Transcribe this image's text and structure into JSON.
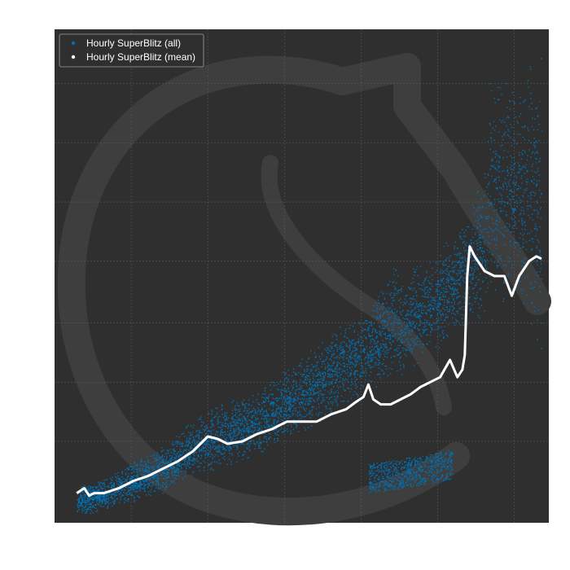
{
  "chart_data": {
    "type": "scatter",
    "title": "",
    "xlabel": "",
    "ylabel": "",
    "grid": true,
    "legend_position": "top-left",
    "x_tick_labels": [],
    "y_tick_labels": [],
    "xlim": [
      0,
      100
    ],
    "ylim": [
      0,
      100
    ],
    "background_color": "#2f2f2f",
    "grid_color": "#5a5a5a",
    "watermark": "knight-logo",
    "series": [
      {
        "name": "Hourly SuperBlitz (all)",
        "color": "#0070b4",
        "kind": "scatter-cloud",
        "bands": [
          [
            4.5,
            1.5,
            8
          ],
          [
            8,
            2,
            8
          ],
          [
            15,
            4,
            12
          ],
          [
            22,
            6,
            16
          ],
          [
            29,
            10,
            22
          ],
          [
            32,
            10,
            24
          ],
          [
            36,
            12,
            25
          ],
          [
            40,
            13,
            27
          ],
          [
            46,
            16,
            31
          ],
          [
            52,
            19,
            36
          ],
          [
            57,
            22,
            40
          ],
          [
            62,
            25,
            44
          ],
          [
            66,
            28,
            48
          ],
          [
            68.5,
            30,
            54
          ],
          [
            70,
            29,
            50
          ],
          [
            76,
            34,
            55
          ],
          [
            80,
            37,
            58
          ],
          [
            84,
            40,
            63
          ],
          [
            87.5,
            42,
            76
          ],
          [
            88,
            40,
            95
          ],
          [
            92,
            45,
            90
          ],
          [
            96,
            40,
            95
          ],
          [
            98.5,
            30,
            97
          ]
        ],
        "lower_branch": [
          [
            63.5,
            6,
            12
          ],
          [
            70,
            7,
            13
          ],
          [
            76,
            8,
            14
          ],
          [
            80.5,
            9,
            15
          ]
        ]
      },
      {
        "name": "Hourly SuperBlitz (mean)",
        "color": "#ffffff",
        "kind": "line",
        "x": [
          4.5,
          6,
          7,
          8,
          10,
          13,
          16,
          19,
          22,
          25,
          28,
          31,
          33,
          35,
          38,
          41,
          44,
          47,
          50,
          53,
          56,
          59,
          61,
          62.5,
          63.5,
          64.5,
          66,
          68,
          70,
          72,
          74,
          76,
          78,
          80,
          81.5,
          82.5,
          83,
          83.5,
          84,
          85,
          87,
          89,
          91,
          92.5,
          94,
          96,
          97.5,
          98.5
        ],
        "y": [
          6,
          7,
          5.5,
          6,
          6,
          7,
          8.5,
          9.5,
          11,
          12.5,
          14.5,
          17.5,
          17,
          16,
          16.5,
          18,
          19,
          20.5,
          20.5,
          20.5,
          22,
          23,
          24.5,
          25.5,
          28,
          25,
          24,
          24,
          25,
          26,
          27.5,
          28.5,
          29.5,
          33,
          29.5,
          31,
          34,
          50,
          56,
          54,
          51,
          50,
          50,
          46,
          50,
          53,
          54,
          53.5
        ]
      }
    ]
  }
}
